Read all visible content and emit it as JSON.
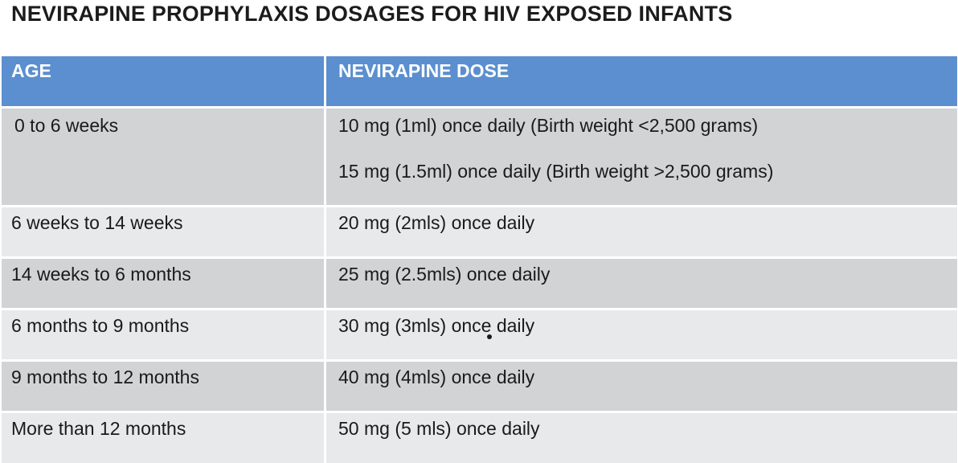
{
  "title": "NEVIRAPINE PROPHYLAXIS DOSAGES FOR HIV EXPOSED INFANTS",
  "header": {
    "age": "AGE",
    "dose": "NEVIRAPINE DOSE"
  },
  "rows": [
    {
      "age": "0 to 6 weeks",
      "dose": "10 mg  (1ml) once daily (Birth weight <2,500 grams)",
      "dose2": "15 mg  (1.5ml) once daily (Birth weight >2,500 grams)"
    },
    {
      "age": "6 weeks to 14 weeks",
      "dose": "20 mg (2mls) once daily"
    },
    {
      "age": "14 weeks to 6 months",
      "dose": "25 mg (2.5mls) once daily"
    },
    {
      "age": "6 months to 9 months",
      "dose": "30 mg (3mls) once daily"
    },
    {
      "age": "9 months to 12 months",
      "dose": "40 mg  (4mls)  once daily"
    },
    {
      "age": "More than 12 months",
      "dose": "50 mg (5 mls) once daily"
    }
  ],
  "colors": {
    "header_bg": "#5b8fcf",
    "row_dark": "#d2d3d5",
    "row_light": "#e8e9eb"
  }
}
